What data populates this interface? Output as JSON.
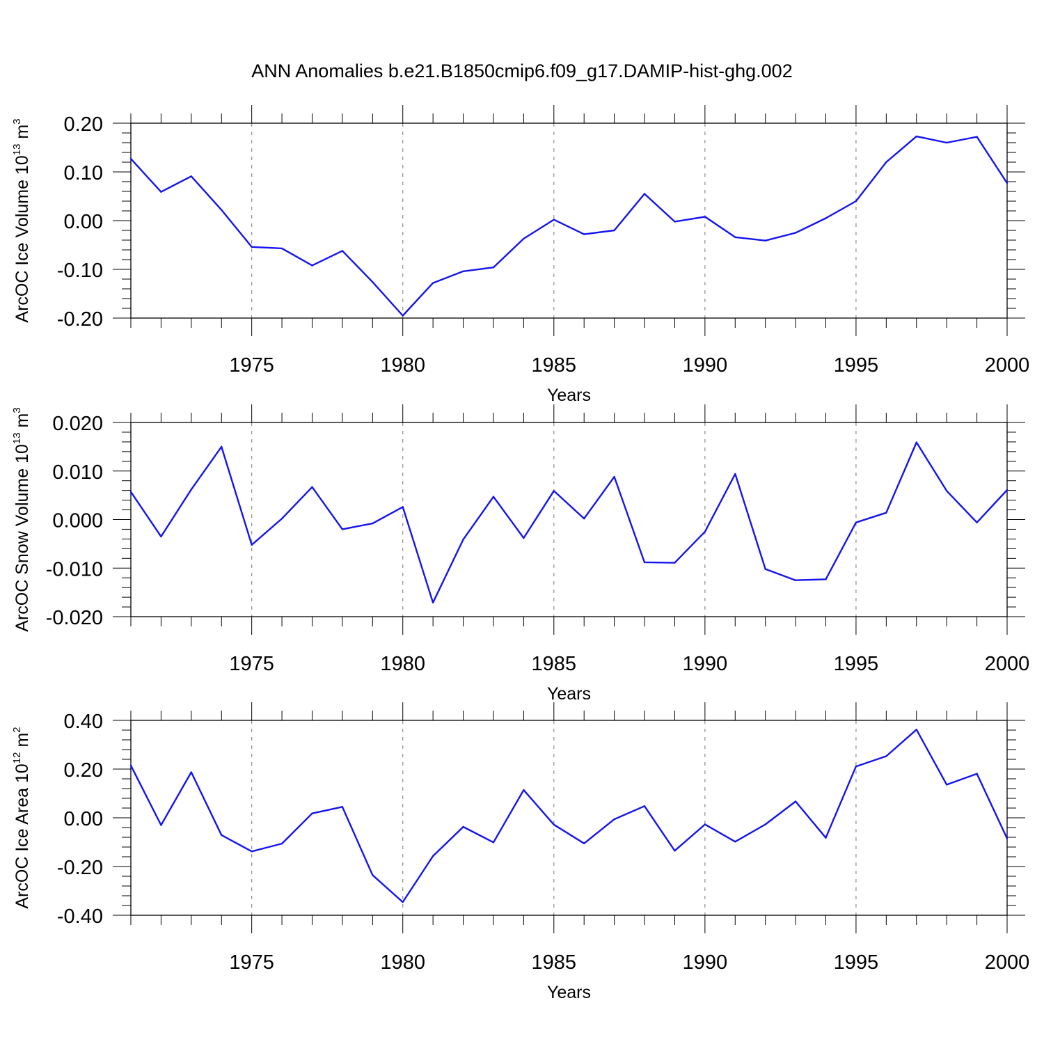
{
  "figure": {
    "title": "ANN Anomalies b.e21.B1850cmip6.f09_g17.DAMIP-hist-ghg.002"
  },
  "colors": {
    "line": "#1414f0",
    "axes": "#000000",
    "grid": "#8c8c8c"
  },
  "chart_data": [
    {
      "type": "line",
      "xlabel": "Years",
      "ylabel": {
        "main": "ArcOC Ice Volume 10",
        "sup1": "13",
        "mid": " m",
        "sup2": "3"
      },
      "xlim": [
        1971,
        2000
      ],
      "ylim": [
        -0.2,
        0.2
      ],
      "xticks": [
        1975,
        1980,
        1985,
        1990,
        1995,
        2000
      ],
      "xtick_labels": [
        "1975",
        "1980",
        "1985",
        "1990",
        "1995",
        "2000"
      ],
      "yticks": [
        -0.2,
        -0.1,
        0.0,
        0.1,
        0.2
      ],
      "ytick_labels": [
        "-0.20",
        "-0.10",
        "0.00",
        "0.10",
        "0.20"
      ],
      "yminor_step": 0.02,
      "grid": "vertical dashed at major x ticks",
      "x": [
        1971,
        1972,
        1973,
        1974,
        1975,
        1976,
        1977,
        1978,
        1979,
        1980,
        1981,
        1982,
        1983,
        1984,
        1985,
        1986,
        1987,
        1988,
        1989,
        1990,
        1991,
        1992,
        1993,
        1994,
        1995,
        1996,
        1997,
        1998,
        1999,
        2000
      ],
      "y": [
        0.127,
        0.059,
        0.091,
        0.022,
        -0.054,
        -0.057,
        -0.092,
        -0.062,
        -0.126,
        -0.195,
        -0.128,
        -0.104,
        -0.096,
        -0.037,
        0.002,
        -0.028,
        -0.02,
        0.055,
        -0.002,
        0.008,
        -0.034,
        -0.041,
        -0.025,
        0.005,
        0.04,
        0.12,
        0.173,
        0.16,
        0.172,
        0.077
      ]
    },
    {
      "type": "line",
      "xlabel": "Years",
      "ylabel": {
        "main": "ArcOC Snow Volume 10",
        "sup1": "13",
        "mid": " m",
        "sup2": "3"
      },
      "xlim": [
        1971,
        2000
      ],
      "ylim": [
        -0.02,
        0.02
      ],
      "xticks": [
        1975,
        1980,
        1985,
        1990,
        1995,
        2000
      ],
      "xtick_labels": [
        "1975",
        "1980",
        "1985",
        "1990",
        "1995",
        "2000"
      ],
      "yticks": [
        -0.02,
        -0.01,
        0.0,
        0.01,
        0.02
      ],
      "ytick_labels": [
        "-0.020",
        "-0.010",
        "0.000",
        "0.010",
        "0.020"
      ],
      "yminor_step": 0.002,
      "grid": "vertical dashed at major x ticks",
      "x": [
        1971,
        1972,
        1973,
        1974,
        1975,
        1976,
        1977,
        1978,
        1979,
        1980,
        1981,
        1982,
        1983,
        1984,
        1985,
        1986,
        1987,
        1988,
        1989,
        1990,
        1991,
        1992,
        1993,
        1994,
        1995,
        1996,
        1997,
        1998,
        1999,
        2000
      ],
      "y": [
        0.0057,
        -0.0035,
        0.0062,
        0.015,
        -0.0052,
        0.0002,
        0.0067,
        -0.002,
        -0.0008,
        0.0026,
        -0.0171,
        -0.0041,
        0.0047,
        -0.0038,
        0.0059,
        0.0002,
        0.0088,
        -0.0088,
        -0.0089,
        -0.0025,
        0.0094,
        -0.0102,
        -0.0125,
        -0.0123,
        -0.0006,
        0.0014,
        0.0159,
        0.0059,
        -0.0006,
        0.0061
      ]
    },
    {
      "type": "line",
      "xlabel": "Years",
      "ylabel": {
        "main": "ArcOC Ice Area 10",
        "sup1": "12",
        "mid": " m",
        "sup2": "2"
      },
      "xlim": [
        1971,
        2000
      ],
      "ylim": [
        -0.4,
        0.4
      ],
      "xticks": [
        1975,
        1980,
        1985,
        1990,
        1995,
        2000
      ],
      "xtick_labels": [
        "1975",
        "1980",
        "1985",
        "1990",
        "1995",
        "2000"
      ],
      "yticks": [
        -0.4,
        -0.2,
        0.0,
        0.2,
        0.4
      ],
      "ytick_labels": [
        "-0.40",
        "-0.20",
        "0.00",
        "0.20",
        "0.40"
      ],
      "yminor_step": 0.04,
      "grid": "vertical dashed at major x ticks",
      "x": [
        1971,
        1972,
        1973,
        1974,
        1975,
        1976,
        1977,
        1978,
        1979,
        1980,
        1981,
        1982,
        1983,
        1984,
        1985,
        1986,
        1987,
        1988,
        1989,
        1990,
        1991,
        1992,
        1993,
        1994,
        1995,
        1996,
        1997,
        1998,
        1999,
        2000
      ],
      "y": [
        0.215,
        -0.03,
        0.187,
        -0.071,
        -0.138,
        -0.106,
        0.018,
        0.045,
        -0.235,
        -0.346,
        -0.157,
        -0.037,
        -0.101,
        0.114,
        -0.028,
        -0.105,
        -0.006,
        0.048,
        -0.135,
        -0.027,
        -0.098,
        -0.027,
        0.067,
        -0.082,
        0.211,
        0.253,
        0.362,
        0.136,
        0.181,
        -0.085
      ]
    }
  ]
}
